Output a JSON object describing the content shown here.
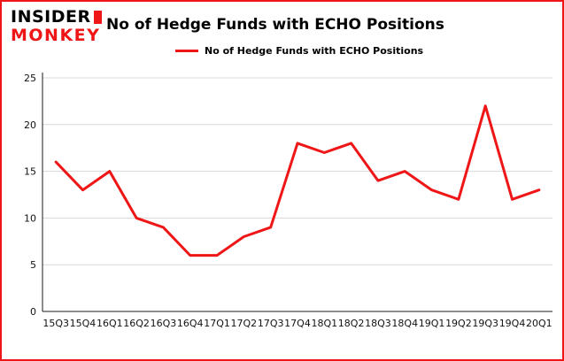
{
  "header": {
    "logo_line1": "INSIDER",
    "logo_line2": "MONKEY",
    "title": "No of Hedge Funds with ECHO Positions"
  },
  "legend": {
    "label": "No of Hedge Funds with ECHO Positions"
  },
  "chart_data": {
    "type": "line",
    "title": "No of Hedge Funds with ECHO Positions",
    "categories": [
      "15Q3",
      "15Q4",
      "16Q1",
      "16Q2",
      "16Q3",
      "16Q4",
      "17Q1",
      "17Q2",
      "17Q3",
      "17Q4",
      "18Q1",
      "18Q2",
      "18Q3",
      "18Q4",
      "19Q1",
      "19Q2",
      "19Q3",
      "19Q4",
      "20Q1"
    ],
    "series": [
      {
        "name": "No of Hedge Funds with ECHO Positions",
        "values": [
          16,
          13,
          15,
          10,
          9,
          6,
          6,
          8,
          9,
          18,
          17,
          18,
          14,
          15,
          13,
          12,
          22,
          12,
          13
        ]
      }
    ],
    "xlabel": "",
    "ylabel": "",
    "ylim": [
      0,
      25
    ],
    "yticks": [
      0,
      5,
      10,
      15,
      20,
      25
    ],
    "grid": true,
    "legend_position": "top",
    "line_color": "#ee1616"
  },
  "colors": {
    "accent": "#ee1616",
    "border": "#ee1616",
    "grid": "#d8d8d8",
    "axis": "#1a1a1a"
  }
}
